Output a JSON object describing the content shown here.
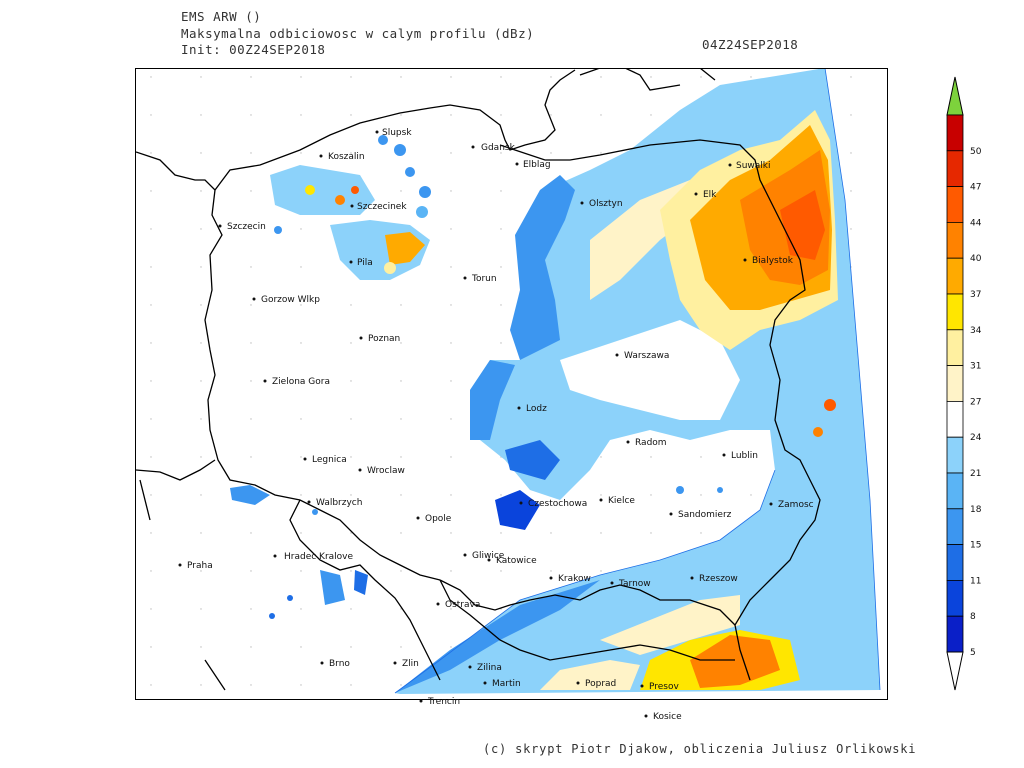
{
  "header": {
    "model": "EMS ARW ()",
    "field": "Maksymalna odbiciowosc w calym profilu (dBz)",
    "init": "Init: 00Z24SEP2018",
    "valid_time": "04Z24SEP2018"
  },
  "colorbar": {
    "levels": [
      "5",
      "8",
      "11",
      "15",
      "18",
      "21",
      "24",
      "27",
      "31",
      "34",
      "37",
      "40",
      "44",
      "47",
      "50"
    ],
    "colors": [
      "#0a1fc8",
      "#0a44dc",
      "#1e6ee6",
      "#3c96f0",
      "#5ab4f5",
      "#8cd2fa",
      "#ffffff",
      "#fff3c8",
      "#fff0a0",
      "#ffe600",
      "#ffaa00",
      "#ff8200",
      "#ff5a00",
      "#e62800",
      "#c80000"
    ],
    "top_arrow_color": "#7dd23c",
    "bottom_arrow_color": "#ffffff"
  },
  "cities": [
    {
      "name": "Slupsk"
    },
    {
      "name": "Koszalin"
    },
    {
      "name": "Gdansk"
    },
    {
      "name": "Elblag"
    },
    {
      "name": "Szczecinek"
    },
    {
      "name": "Olsztyn"
    },
    {
      "name": "Suwalki"
    },
    {
      "name": "Elk"
    },
    {
      "name": "Szczecin"
    },
    {
      "name": "Pila"
    },
    {
      "name": "Torun"
    },
    {
      "name": "Bialystok"
    },
    {
      "name": "Gorzow Wlkp"
    },
    {
      "name": "Poznan"
    },
    {
      "name": "Warszawa"
    },
    {
      "name": "Zielona Gora"
    },
    {
      "name": "Lodz"
    },
    {
      "name": "Radom"
    },
    {
      "name": "Lublin"
    },
    {
      "name": "Legnica"
    },
    {
      "name": "Wroclaw"
    },
    {
      "name": "Walbrzych"
    },
    {
      "name": "Czestochowa"
    },
    {
      "name": "Kielce"
    },
    {
      "name": "Opole"
    },
    {
      "name": "Sandomierz"
    },
    {
      "name": "Zamosc"
    },
    {
      "name": "Praha"
    },
    {
      "name": "Hradec Kralove"
    },
    {
      "name": "Gliwice"
    },
    {
      "name": "Katowice"
    },
    {
      "name": "Krakow"
    },
    {
      "name": "Tarnow"
    },
    {
      "name": "Rzeszow"
    },
    {
      "name": "Ostrava"
    },
    {
      "name": "Brno"
    },
    {
      "name": "Zlin"
    },
    {
      "name": "Zilina"
    },
    {
      "name": "Martin"
    },
    {
      "name": "Poprad"
    },
    {
      "name": "Presov"
    },
    {
      "name": "Trencin"
    },
    {
      "name": "Kosice"
    }
  ],
  "footer": {
    "credit": "(c) skrypt Piotr Djakow, obliczenia Juliusz Orlikowski"
  }
}
